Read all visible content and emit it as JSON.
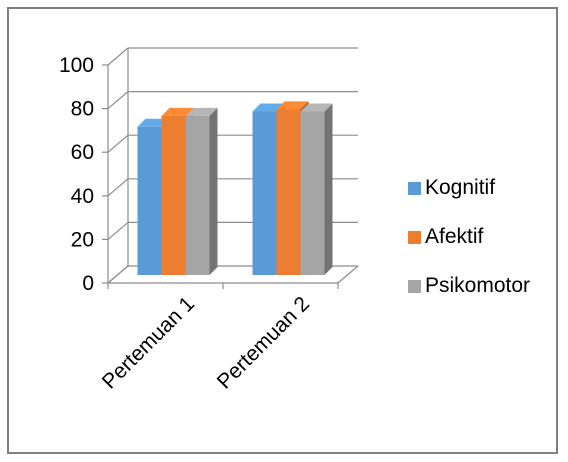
{
  "chart_data": {
    "type": "bar",
    "three_d": true,
    "categories": [
      "Pertemuan 1",
      "Pertemuan 2"
    ],
    "series": [
      {
        "name": "Kognitif",
        "values": [
          68,
          75
        ],
        "color": "#5b9bd5"
      },
      {
        "name": "Afektif",
        "values": [
          73,
          76
        ],
        "color": "#ed7d31"
      },
      {
        "name": "Psikomotor",
        "values": [
          73,
          75
        ],
        "color": "#a5a5a5"
      }
    ],
    "ylim": [
      0,
      100
    ],
    "yticks": [
      0,
      20,
      40,
      60,
      80,
      100
    ],
    "grid": true,
    "legend": "right",
    "title": "",
    "xlabel": "",
    "ylabel": ""
  }
}
